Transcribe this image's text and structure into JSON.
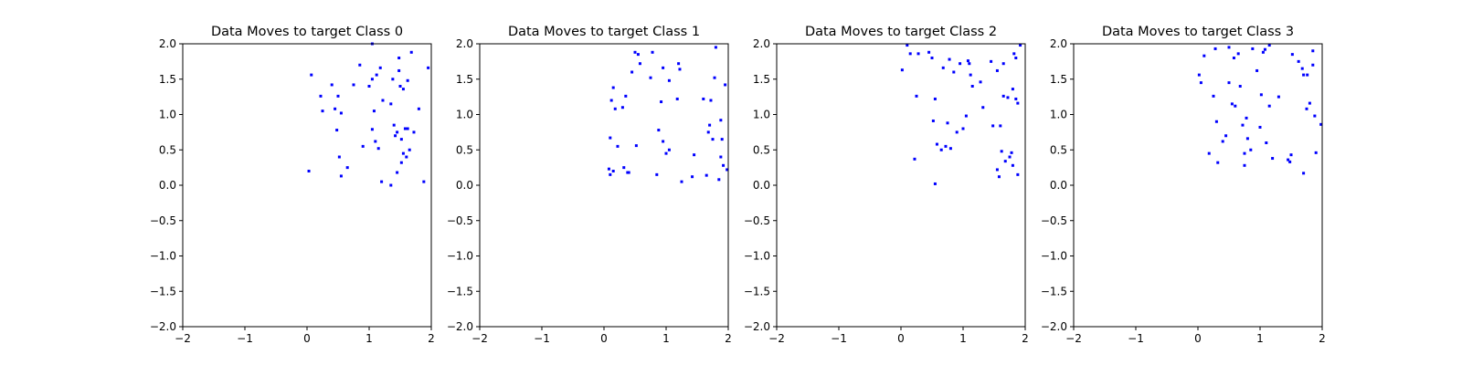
{
  "chart_data": [
    {
      "type": "scatter",
      "title": "Data Moves to target Class 0",
      "xlim": [
        -2,
        2
      ],
      "ylim": [
        -2,
        2
      ],
      "xticks": [
        "−2",
        "−1",
        "0",
        "1",
        "2"
      ],
      "yticks": [
        "−2.0",
        "−1.5",
        "−1.0",
        "−0.5",
        "0.0",
        "0.5",
        "1.0",
        "1.5",
        "2.0"
      ],
      "grid": false,
      "color": "#0000ff",
      "points": [
        [
          0.03,
          0.2
        ],
        [
          0.07,
          1.56
        ],
        [
          0.22,
          1.26
        ],
        [
          0.25,
          1.05
        ],
        [
          0.4,
          1.42
        ],
        [
          0.45,
          1.08
        ],
        [
          0.48,
          0.78
        ],
        [
          0.5,
          1.26
        ],
        [
          0.52,
          0.4
        ],
        [
          0.55,
          1.02
        ],
        [
          0.55,
          0.13
        ],
        [
          0.65,
          0.25
        ],
        [
          0.75,
          1.42
        ],
        [
          0.85,
          1.7
        ],
        [
          0.9,
          0.55
        ],
        [
          1.0,
          1.4
        ],
        [
          1.05,
          1.5
        ],
        [
          1.05,
          2.0
        ],
        [
          1.05,
          0.79
        ],
        [
          1.08,
          1.05
        ],
        [
          1.1,
          0.62
        ],
        [
          1.12,
          1.56
        ],
        [
          1.15,
          0.52
        ],
        [
          1.18,
          1.66
        ],
        [
          1.2,
          0.05
        ],
        [
          1.22,
          1.2
        ],
        [
          1.35,
          1.15
        ],
        [
          1.35,
          0.0
        ],
        [
          1.38,
          1.5
        ],
        [
          1.4,
          0.85
        ],
        [
          1.42,
          0.7
        ],
        [
          1.45,
          0.75
        ],
        [
          1.45,
          0.18
        ],
        [
          1.48,
          1.62
        ],
        [
          1.48,
          1.8
        ],
        [
          1.5,
          1.4
        ],
        [
          1.52,
          0.32
        ],
        [
          1.52,
          0.65
        ],
        [
          1.55,
          1.36
        ],
        [
          1.55,
          0.45
        ],
        [
          1.58,
          0.8
        ],
        [
          1.6,
          0.4
        ],
        [
          1.62,
          0.8
        ],
        [
          1.62,
          1.48
        ],
        [
          1.65,
          0.5
        ],
        [
          1.68,
          1.88
        ],
        [
          1.72,
          0.75
        ],
        [
          1.8,
          1.08
        ],
        [
          1.88,
          0.05
        ],
        [
          1.95,
          1.66
        ]
      ]
    },
    {
      "type": "scatter",
      "title": "Data Moves to target Class 1",
      "xlim": [
        -2,
        2
      ],
      "ylim": [
        -2,
        2
      ],
      "xticks": [
        "−2",
        "−1",
        "0",
        "1",
        "2"
      ],
      "yticks": [
        "−2.0",
        "−1.5",
        "−1.0",
        "−0.5",
        "0.0",
        "0.5",
        "1.0",
        "1.5",
        "2.0"
      ],
      "grid": false,
      "color": "#0000ff",
      "points": [
        [
          0.08,
          0.23
        ],
        [
          0.1,
          0.67
        ],
        [
          0.1,
          0.15
        ],
        [
          0.12,
          1.2
        ],
        [
          0.15,
          1.38
        ],
        [
          0.15,
          0.2
        ],
        [
          0.18,
          1.08
        ],
        [
          0.22,
          0.55
        ],
        [
          0.3,
          1.1
        ],
        [
          0.32,
          0.25
        ],
        [
          0.35,
          1.26
        ],
        [
          0.38,
          0.18
        ],
        [
          0.4,
          0.18
        ],
        [
          0.45,
          1.6
        ],
        [
          0.5,
          1.88
        ],
        [
          0.52,
          0.56
        ],
        [
          0.55,
          1.85
        ],
        [
          0.58,
          1.72
        ],
        [
          0.75,
          1.52
        ],
        [
          0.78,
          1.88
        ],
        [
          0.85,
          0.15
        ],
        [
          0.88,
          0.78
        ],
        [
          0.92,
          1.18
        ],
        [
          0.95,
          1.66
        ],
        [
          0.95,
          0.62
        ],
        [
          1.0,
          0.45
        ],
        [
          1.05,
          0.5
        ],
        [
          1.05,
          1.48
        ],
        [
          1.18,
          1.22
        ],
        [
          1.2,
          1.72
        ],
        [
          1.22,
          1.64
        ],
        [
          1.25,
          0.05
        ],
        [
          1.42,
          0.12
        ],
        [
          1.45,
          0.43
        ],
        [
          1.6,
          1.22
        ],
        [
          1.65,
          0.14
        ],
        [
          1.68,
          0.75
        ],
        [
          1.7,
          0.85
        ],
        [
          1.72,
          1.2
        ],
        [
          1.75,
          0.65
        ],
        [
          1.78,
          1.52
        ],
        [
          1.8,
          1.95
        ],
        [
          1.85,
          0.08
        ],
        [
          1.88,
          0.4
        ],
        [
          1.88,
          0.92
        ],
        [
          1.9,
          0.65
        ],
        [
          1.92,
          0.28
        ],
        [
          1.95,
          1.42
        ],
        [
          1.98,
          0.22
        ]
      ]
    },
    {
      "type": "scatter",
      "title": "Data Moves to target Class 2",
      "xlim": [
        -2,
        2
      ],
      "ylim": [
        -2,
        2
      ],
      "xticks": [
        "−2",
        "−1",
        "0",
        "1",
        "2"
      ],
      "yticks": [
        "−2.0",
        "−1.5",
        "−1.0",
        "−0.5",
        "0.0",
        "0.5",
        "1.0",
        "1.5",
        "2.0"
      ],
      "grid": false,
      "color": "#0000ff",
      "points": [
        [
          0.02,
          1.63
        ],
        [
          0.1,
          1.98
        ],
        [
          0.15,
          1.86
        ],
        [
          0.22,
          0.37
        ],
        [
          0.25,
          1.26
        ],
        [
          0.28,
          1.86
        ],
        [
          0.45,
          1.88
        ],
        [
          0.5,
          1.8
        ],
        [
          0.52,
          0.91
        ],
        [
          0.55,
          1.22
        ],
        [
          0.55,
          0.02
        ],
        [
          0.58,
          0.58
        ],
        [
          0.65,
          0.5
        ],
        [
          0.68,
          1.66
        ],
        [
          0.72,
          0.55
        ],
        [
          0.75,
          0.88
        ],
        [
          0.78,
          1.78
        ],
        [
          0.8,
          0.52
        ],
        [
          0.85,
          1.6
        ],
        [
          0.9,
          0.75
        ],
        [
          0.95,
          1.72
        ],
        [
          1.0,
          0.8
        ],
        [
          1.05,
          0.98
        ],
        [
          1.08,
          1.76
        ],
        [
          1.1,
          1.72
        ],
        [
          1.12,
          1.56
        ],
        [
          1.15,
          1.4
        ],
        [
          1.28,
          1.46
        ],
        [
          1.32,
          1.1
        ],
        [
          1.45,
          1.75
        ],
        [
          1.48,
          0.84
        ],
        [
          1.55,
          1.62
        ],
        [
          1.55,
          0.22
        ],
        [
          1.58,
          0.12
        ],
        [
          1.6,
          0.84
        ],
        [
          1.62,
          0.48
        ],
        [
          1.65,
          1.26
        ],
        [
          1.65,
          1.72
        ],
        [
          1.68,
          0.34
        ],
        [
          1.72,
          1.24
        ],
        [
          1.75,
          0.4
        ],
        [
          1.78,
          0.46
        ],
        [
          1.8,
          0.28
        ],
        [
          1.8,
          1.36
        ],
        [
          1.82,
          1.86
        ],
        [
          1.85,
          1.8
        ],
        [
          1.85,
          1.22
        ],
        [
          1.88,
          1.16
        ],
        [
          1.88,
          0.15
        ],
        [
          1.92,
          1.98
        ]
      ]
    },
    {
      "type": "scatter",
      "title": "Data Moves to target Class 3",
      "xlim": [
        -2,
        2
      ],
      "ylim": [
        -2,
        2
      ],
      "xticks": [
        "−2",
        "−1",
        "0",
        "1",
        "2"
      ],
      "yticks": [
        "−2.0",
        "−1.5",
        "−1.0",
        "−0.5",
        "0.0",
        "0.5",
        "1.0",
        "1.5",
        "2.0"
      ],
      "grid": false,
      "color": "#0000ff",
      "points": [
        [
          0.02,
          1.56
        ],
        [
          0.05,
          1.45
        ],
        [
          0.1,
          1.83
        ],
        [
          0.18,
          0.45
        ],
        [
          0.25,
          1.26
        ],
        [
          0.28,
          1.93
        ],
        [
          0.3,
          0.9
        ],
        [
          0.32,
          0.32
        ],
        [
          0.4,
          0.62
        ],
        [
          0.45,
          0.7
        ],
        [
          0.5,
          1.95
        ],
        [
          0.5,
          1.45
        ],
        [
          0.55,
          1.15
        ],
        [
          0.58,
          1.8
        ],
        [
          0.6,
          1.12
        ],
        [
          0.65,
          1.86
        ],
        [
          0.68,
          1.4
        ],
        [
          0.72,
          0.85
        ],
        [
          0.75,
          0.28
        ],
        [
          0.75,
          0.45
        ],
        [
          0.78,
          0.95
        ],
        [
          0.8,
          0.66
        ],
        [
          0.85,
          0.5
        ],
        [
          0.88,
          1.93
        ],
        [
          0.95,
          1.62
        ],
        [
          1.0,
          0.82
        ],
        [
          1.02,
          1.28
        ],
        [
          1.05,
          1.88
        ],
        [
          1.08,
          1.92
        ],
        [
          1.1,
          0.6
        ],
        [
          1.15,
          1.98
        ],
        [
          1.15,
          1.12
        ],
        [
          1.2,
          0.38
        ],
        [
          1.3,
          1.25
        ],
        [
          1.45,
          0.36
        ],
        [
          1.48,
          0.33
        ],
        [
          1.5,
          0.43
        ],
        [
          1.52,
          1.85
        ],
        [
          1.62,
          1.75
        ],
        [
          1.68,
          1.65
        ],
        [
          1.7,
          1.56
        ],
        [
          1.7,
          0.17
        ],
        [
          1.75,
          1.08
        ],
        [
          1.76,
          1.56
        ],
        [
          1.8,
          1.16
        ],
        [
          1.85,
          1.9
        ],
        [
          1.85,
          1.7
        ],
        [
          1.88,
          0.98
        ],
        [
          1.9,
          0.46
        ],
        [
          1.98,
          0.86
        ]
      ]
    }
  ]
}
